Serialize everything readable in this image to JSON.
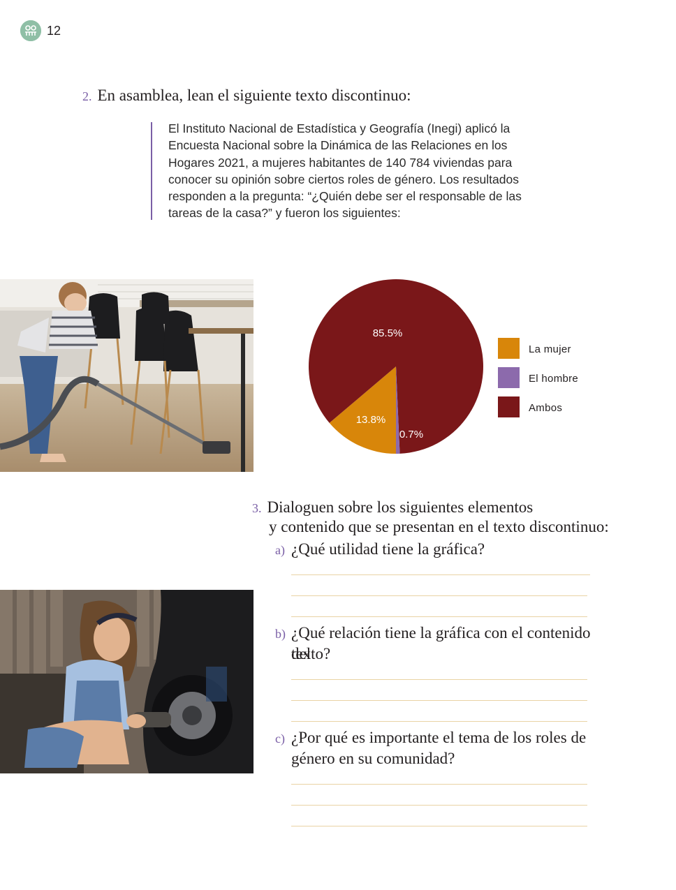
{
  "header": {
    "page_number": "12",
    "icon": "codex-glyph-icon"
  },
  "section2": {
    "number": "2.",
    "prompt": "En asamblea, lean el siguiente texto discontinuo:",
    "text": "El Instituto Nacional de Estadística y Geografía (Inegi) aplicó la Encuesta Nacional sobre la Dinámica de las Relaciones en los Hogares 2021, a mujeres habitantes de 140 784 viviendas para conocer su opinión sobre ciertos roles de género. Los resultados responden a la pregunta: “¿Quién debe ser el responsable de las tareas de la casa?” y fueron los siguientes:"
  },
  "chart_data": {
    "type": "pie",
    "title": "",
    "categories": [
      "La mujer",
      "El hombre",
      "Ambos"
    ],
    "values": [
      13.8,
      0.7,
      85.5
    ],
    "labels": [
      "13.8%",
      "0.7%",
      "85.5%"
    ],
    "colors": [
      "#d8860a",
      "#8c6aac",
      "#7a1719"
    ],
    "legend_position": "right"
  },
  "section3": {
    "number": "3.",
    "prompt_line1": "Dialoguen sobre los siguientes elementos",
    "prompt_line2": "y contenido que se presentan en el texto discontinuo:",
    "questions": [
      {
        "letter": "a)",
        "line1": "¿Qué utilidad tiene la gráfica?",
        "line2": ""
      },
      {
        "letter": "b)",
        "line1": "¿Qué relación tiene la gráfica con el contenido del",
        "line2": "texto?"
      },
      {
        "letter": "c)",
        "line1": "¿Por qué es importante el tema de los roles de",
        "line2": "género en su comunidad?"
      }
    ]
  },
  "colors": {
    "accent": "#7a5fa6",
    "answer_rule": "#e9d3a4",
    "icon_bg": "#8fbfa6"
  }
}
